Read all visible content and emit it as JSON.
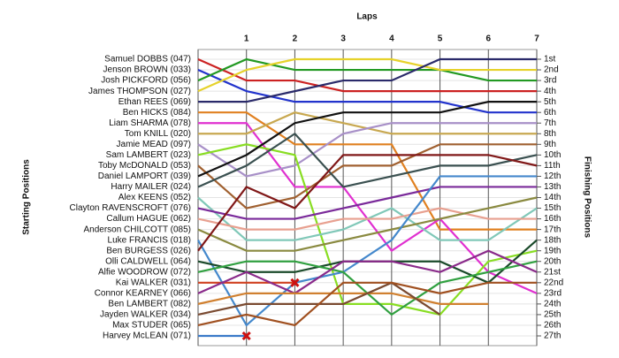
{
  "chart_data": {
    "type": "lapchart",
    "x_label": "Laps",
    "y_label": "Starting Positions",
    "y2_label": "Finishing Positions",
    "x": [
      0,
      1,
      2,
      3,
      4,
      5,
      6,
      7
    ],
    "xlim": [
      0,
      7
    ],
    "xticks": [
      1,
      2,
      3,
      4,
      5,
      6,
      7
    ],
    "ylim": [
      27,
      1
    ],
    "grid": true,
    "finishing_positions": [
      "1st",
      "2nd",
      "3rd",
      "4th",
      "5th",
      "6th",
      "7th",
      "8th",
      "9th",
      "10th",
      "11th",
      "12th",
      "13th",
      "14th",
      "15th",
      "16th",
      "17th",
      "18th",
      "19th",
      "20th",
      "21st",
      "22nd",
      "23rd",
      "24th",
      "25th",
      "26th",
      "27th"
    ],
    "series": [
      {
        "name": "Samuel DOBBS (047)",
        "color": "#cc2222",
        "values": [
          1,
          3,
          3,
          4,
          4,
          4,
          4,
          4
        ]
      },
      {
        "name": "Jenson BROWN (033)",
        "color": "#2233cc",
        "values": [
          2,
          4,
          5,
          5,
          5,
          5,
          6,
          6
        ]
      },
      {
        "name": "Josh PICKFORD (056)",
        "color": "#229922",
        "values": [
          3,
          1,
          2,
          2,
          2,
          2,
          3,
          3
        ]
      },
      {
        "name": "James THOMPSON (027)",
        "color": "#e6d22a",
        "values": [
          4,
          2,
          1,
          1,
          1,
          2,
          2,
          2
        ]
      },
      {
        "name": "Ethan REES (069)",
        "color": "#2a2a6a",
        "values": [
          5,
          5,
          4,
          3,
          3,
          1,
          1,
          1
        ]
      },
      {
        "name": "Ben HICKS (084)",
        "color": "#e08020",
        "values": [
          6,
          6,
          9,
          9,
          9,
          17,
          17,
          17
        ]
      },
      {
        "name": "Liam SHARMA (078)",
        "color": "#e030d0",
        "values": [
          7,
          7,
          13,
          13,
          19,
          16,
          21,
          23
        ]
      },
      {
        "name": "Tom KNILL (020)",
        "color": "#c8a850",
        "values": [
          8,
          8,
          6,
          7,
          8,
          8,
          8,
          8
        ]
      },
      {
        "name": "Jamie MEAD (097)",
        "color": "#a890c8",
        "values": [
          9,
          12,
          11,
          8,
          7,
          7,
          7,
          7
        ]
      },
      {
        "name": "Sam LAMBERT (023)",
        "color": "#88dd22",
        "values": [
          10,
          9,
          10,
          24,
          24,
          25,
          20,
          19
        ]
      },
      {
        "name": "Toby McDONALD (053)",
        "color": "#a06030",
        "values": [
          11,
          15,
          14,
          11,
          11,
          9,
          9,
          9
        ]
      },
      {
        "name": "Daniel LAMPORT (039)",
        "color": "#111111",
        "values": [
          12,
          10,
          7,
          6,
          6,
          6,
          5,
          5
        ]
      },
      {
        "name": "Harry MAILER (024)",
        "color": "#3a5050",
        "values": [
          13,
          11,
          8,
          13,
          12,
          11,
          11,
          10
        ]
      },
      {
        "name": "Alex KEENS (052)",
        "color": "#80c8b8",
        "values": [
          14,
          18,
          18,
          17,
          15,
          18,
          18,
          15
        ]
      },
      {
        "name": "Clayton RAVENSCROFT (076)",
        "color": "#7a2a9a",
        "values": [
          15,
          16,
          16,
          15,
          14,
          13,
          13,
          13
        ]
      },
      {
        "name": "Callum HAGUE (062)",
        "color": "#e8a090",
        "values": [
          16,
          17,
          17,
          16,
          16,
          15,
          16,
          16
        ]
      },
      {
        "name": "Anderson CHILCOTT (085)",
        "color": "#8a8a40",
        "values": [
          17,
          19,
          19,
          18,
          17,
          16,
          15,
          14
        ]
      },
      {
        "name": "Luke FRANCIS (018)",
        "color": "#4488cc",
        "values": [
          18,
          26,
          22,
          21,
          18,
          12,
          12,
          12
        ]
      },
      {
        "name": "Ben BURGESS (026)",
        "color": "#801818",
        "values": [
          19,
          13,
          15,
          10,
          10,
          10,
          10,
          11
        ]
      },
      {
        "name": "Olli CALDWELL (064)",
        "color": "#1a4a2a",
        "values": [
          20,
          21,
          21,
          20,
          20,
          20,
          22,
          18
        ]
      },
      {
        "name": "Alfie WOODROW (072)",
        "color": "#30a040",
        "values": [
          21,
          20,
          20,
          21,
          25,
          22,
          21,
          20
        ]
      },
      {
        "name": "Kai WALKER (031)",
        "color": "#d04020",
        "values": [
          22,
          22,
          22,
          null,
          null,
          null,
          null,
          null
        ],
        "marker": "x"
      },
      {
        "name": "Connor KEARNEY (066)",
        "color": "#8a2a8a",
        "values": [
          23,
          21,
          23,
          20,
          20,
          21,
          19,
          21
        ]
      },
      {
        "name": "Ben LAMBERT (082)",
        "color": "#d08030",
        "values": [
          24,
          23,
          23,
          23,
          23,
          24,
          24,
          null
        ]
      },
      {
        "name": "Jayden WALKER (034)",
        "color": "#7a4a30",
        "values": [
          25,
          24,
          24,
          24,
          22,
          25,
          null,
          null
        ]
      },
      {
        "name": "Max STUDER (065)",
        "color": "#a05020",
        "values": [
          26,
          25,
          26,
          22,
          22,
          23,
          22,
          22
        ]
      },
      {
        "name": "Harvey McLEAN (071)",
        "color": "#3a7ac8",
        "values": [
          27,
          27,
          null,
          null,
          null,
          null,
          null,
          null
        ],
        "marker": "x"
      }
    ]
  }
}
